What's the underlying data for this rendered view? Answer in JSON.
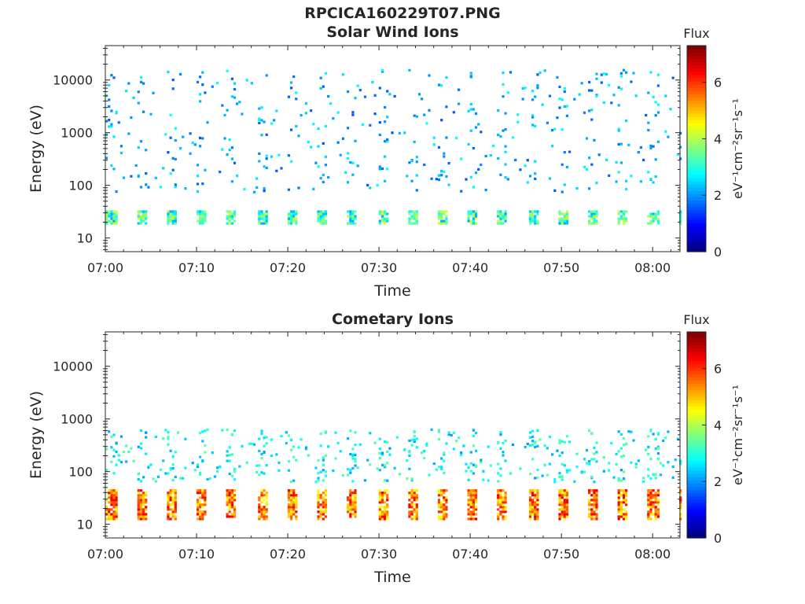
{
  "figure": {
    "title": "RPCICA160229T07.PNG"
  },
  "chart_data": [
    {
      "type": "heatmap",
      "title": "Solar Wind Ions",
      "xlabel": "Time",
      "ylabel": "Energy (eV)",
      "x_ticks": [
        "07:00",
        "07:10",
        "07:20",
        "07:30",
        "07:40",
        "07:50",
        "08:00"
      ],
      "x_range_minutes": [
        0,
        63
      ],
      "y_scale": "log",
      "y_ticks": [
        "10",
        "100",
        "1000",
        "10000"
      ],
      "ylim": [
        5.5,
        45000
      ],
      "colorbar": {
        "label": "Flux",
        "units": "eV⁻¹cm⁻²sr⁻¹s⁻¹",
        "range": [
          0,
          7.3
        ],
        "ticks": [
          "0",
          "2",
          "4",
          "6"
        ]
      },
      "pattern": {
        "periods_min": 3.3,
        "low_energy_band_eV": [
          18,
          32
        ],
        "low_flux": 3.2,
        "scatter_energy_eV": [
          70,
          15000
        ],
        "scatter_flux": [
          1.5,
          2.8
        ]
      }
    },
    {
      "type": "heatmap",
      "title": "Cometary Ions",
      "xlabel": "Time",
      "ylabel": "Energy (eV)",
      "x_ticks": [
        "07:00",
        "07:10",
        "07:20",
        "07:30",
        "07:40",
        "07:50",
        "08:00"
      ],
      "x_range_minutes": [
        0,
        63
      ],
      "y_scale": "log",
      "y_ticks": [
        "10",
        "100",
        "1000",
        "10000"
      ],
      "ylim": [
        5.5,
        45000
      ],
      "colorbar": {
        "label": "Flux",
        "units": "eV⁻¹cm⁻²sr⁻¹s⁻¹",
        "range": [
          0,
          7.3
        ],
        "ticks": [
          "0",
          "2",
          "4",
          "6"
        ]
      },
      "pattern": {
        "periods_min": 3.3,
        "low_energy_band_eV": [
          12,
          45
        ],
        "low_flux": 5.5,
        "scatter_energy_eV": [
          60,
          600
        ],
        "scatter_flux": [
          2.0,
          3.5
        ]
      }
    }
  ]
}
